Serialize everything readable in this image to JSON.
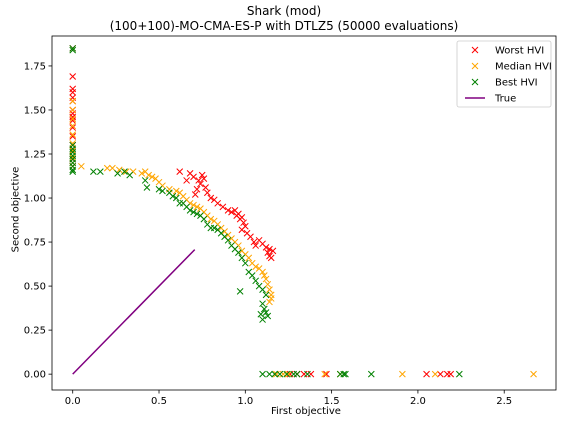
{
  "chart_data": {
    "type": "scatter",
    "title": "Shark (mod)",
    "subtitle": "(100+100)-MO-CMA-ES-P with DTLZ5 (50000 evaluations)",
    "xlabel": "First objective",
    "ylabel": "Second objective",
    "xlim": [
      -0.12,
      2.8
    ],
    "ylim": [
      -0.09,
      1.92
    ],
    "xticks": [
      "0.0",
      "0.5",
      "1.0",
      "1.5",
      "2.0",
      "2.5"
    ],
    "yticks": [
      "0.00",
      "0.25",
      "0.50",
      "0.75",
      "1.00",
      "1.25",
      "1.50",
      "1.75"
    ],
    "grid": false,
    "legend_position": "top-right",
    "series": [
      {
        "name": "Worst HVI",
        "marker": "x",
        "color": "#ff0000",
        "points": [
          [
            0,
            1.85
          ],
          [
            0,
            1.69
          ],
          [
            0,
            1.62
          ],
          [
            0,
            1.6
          ],
          [
            0,
            1.57
          ],
          [
            0,
            1.55
          ],
          [
            0,
            1.5
          ],
          [
            0,
            1.48
          ],
          [
            0,
            1.46
          ],
          [
            0,
            1.44
          ],
          [
            0,
            1.4
          ],
          [
            0,
            1.35
          ],
          [
            0,
            1.3
          ],
          [
            0,
            1.27
          ],
          [
            0,
            1.22
          ],
          [
            0,
            1.18
          ],
          [
            0.62,
            1.15
          ],
          [
            0.68,
            1.14
          ],
          [
            0.7,
            1.12
          ],
          [
            0.73,
            1.1
          ],
          [
            0.75,
            1.13
          ],
          [
            0.76,
            1.11
          ],
          [
            0.74,
            1.08
          ],
          [
            0.77,
            1.06
          ],
          [
            0.72,
            1.05
          ],
          [
            0.78,
            1.03
          ],
          [
            0.8,
            1.0
          ],
          [
            0.71,
            1.02
          ],
          [
            0.66,
            1.1
          ],
          [
            0.82,
            0.99
          ],
          [
            0.84,
            0.97
          ],
          [
            0.87,
            0.95
          ],
          [
            0.9,
            0.93
          ],
          [
            0.92,
            0.92
          ],
          [
            0.94,
            0.93
          ],
          [
            0.96,
            0.91
          ],
          [
            0.98,
            0.89
          ],
          [
            0.99,
            0.86
          ],
          [
            1.0,
            0.84
          ],
          [
            0.97,
            0.88
          ],
          [
            0.95,
            0.9
          ],
          [
            1.01,
            0.8
          ],
          [
            0.98,
            0.82
          ],
          [
            1.03,
            0.78
          ],
          [
            1.05,
            0.75
          ],
          [
            1.06,
            0.73
          ],
          [
            1.08,
            0.76
          ],
          [
            1.1,
            0.74
          ],
          [
            1.12,
            0.72
          ],
          [
            1.14,
            0.71
          ],
          [
            1.13,
            0.69
          ],
          [
            1.16,
            0.7
          ],
          [
            1.14,
            0.67
          ],
          [
            1.15,
            0.66
          ],
          [
            1.26,
            0
          ],
          [
            1.3,
            0
          ],
          [
            1.34,
            0
          ],
          [
            1.38,
            0
          ],
          [
            1.47,
            0
          ],
          [
            2.05,
            0
          ],
          [
            2.13,
            0
          ],
          [
            2.17,
            0
          ],
          [
            2.19,
            0
          ]
        ]
      },
      {
        "name": "Median HVI",
        "marker": "x",
        "color": "#ffa500",
        "points": [
          [
            0,
            1.55
          ],
          [
            0,
            1.5
          ],
          [
            0,
            1.45
          ],
          [
            0,
            1.41
          ],
          [
            0,
            1.36
          ],
          [
            0,
            1.31
          ],
          [
            0,
            1.27
          ],
          [
            0,
            1.23
          ],
          [
            0,
            1.2
          ],
          [
            0,
            1.18
          ],
          [
            0.05,
            1.18
          ],
          [
            0.2,
            1.17
          ],
          [
            0.23,
            1.17
          ],
          [
            0.27,
            1.16
          ],
          [
            0.31,
            1.15
          ],
          [
            0.35,
            1.15
          ],
          [
            0.4,
            1.14
          ],
          [
            0.42,
            1.15
          ],
          [
            0.44,
            1.13
          ],
          [
            0.46,
            1.12
          ],
          [
            0.48,
            1.11
          ],
          [
            0.5,
            1.09
          ],
          [
            0.52,
            1.07
          ],
          [
            0.56,
            1.05
          ],
          [
            0.6,
            1.04
          ],
          [
            0.62,
            1.03
          ],
          [
            0.64,
            1.01
          ],
          [
            0.66,
            0.99
          ],
          [
            0.68,
            0.97
          ],
          [
            0.7,
            0.96
          ],
          [
            0.72,
            0.95
          ],
          [
            0.74,
            0.94
          ],
          [
            0.76,
            0.92
          ],
          [
            0.78,
            0.9
          ],
          [
            0.8,
            0.88
          ],
          [
            0.82,
            0.87
          ],
          [
            0.84,
            0.85
          ],
          [
            0.86,
            0.83
          ],
          [
            0.88,
            0.81
          ],
          [
            0.9,
            0.79
          ],
          [
            0.92,
            0.77
          ],
          [
            0.94,
            0.75
          ],
          [
            0.96,
            0.73
          ],
          [
            0.98,
            0.7
          ],
          [
            1.0,
            0.68
          ],
          [
            1.02,
            0.66
          ],
          [
            1.04,
            0.63
          ],
          [
            1.06,
            0.61
          ],
          [
            1.08,
            0.6
          ],
          [
            1.1,
            0.58
          ],
          [
            1.11,
            0.56
          ],
          [
            1.12,
            0.54
          ],
          [
            1.13,
            0.51
          ],
          [
            1.14,
            0.48
          ],
          [
            1.15,
            0.45
          ],
          [
            1.15,
            0.43
          ],
          [
            1.14,
            0.41
          ],
          [
            1.18,
            0
          ],
          [
            1.22,
            0
          ],
          [
            1.25,
            0
          ],
          [
            1.46,
            0
          ],
          [
            1.55,
            0
          ],
          [
            1.91,
            0
          ],
          [
            2.1,
            0
          ],
          [
            2.67,
            0
          ]
        ]
      },
      {
        "name": "Best HVI",
        "marker": "x",
        "color": "#008000",
        "points": [
          [
            0,
            1.85
          ],
          [
            0,
            1.84
          ],
          [
            0,
            1.3
          ],
          [
            0,
            1.28
          ],
          [
            0,
            1.26
          ],
          [
            0,
            1.24
          ],
          [
            0,
            1.22
          ],
          [
            0,
            1.2
          ],
          [
            0,
            1.18
          ],
          [
            0,
            1.16
          ],
          [
            0,
            1.15
          ],
          [
            0.12,
            1.15
          ],
          [
            0.16,
            1.15
          ],
          [
            0.26,
            1.14
          ],
          [
            0.3,
            1.15
          ],
          [
            0.33,
            1.13
          ],
          [
            0.42,
            1.1
          ],
          [
            0.43,
            1.06
          ],
          [
            0.5,
            1.05
          ],
          [
            0.52,
            1.04
          ],
          [
            0.56,
            1.03
          ],
          [
            0.58,
            1.01
          ],
          [
            0.6,
            1.0
          ],
          [
            0.62,
            0.97
          ],
          [
            0.64,
            0.97
          ],
          [
            0.66,
            0.95
          ],
          [
            0.68,
            0.93
          ],
          [
            0.7,
            0.92
          ],
          [
            0.72,
            0.91
          ],
          [
            0.74,
            0.9
          ],
          [
            0.76,
            0.88
          ],
          [
            0.78,
            0.85
          ],
          [
            0.8,
            0.83
          ],
          [
            0.82,
            0.83
          ],
          [
            0.84,
            0.82
          ],
          [
            0.86,
            0.8
          ],
          [
            0.88,
            0.78
          ],
          [
            0.9,
            0.76
          ],
          [
            0.92,
            0.73
          ],
          [
            0.94,
            0.71
          ],
          [
            0.96,
            0.69
          ],
          [
            0.98,
            0.66
          ],
          [
            1.0,
            0.63
          ],
          [
            1.02,
            0.58
          ],
          [
            1.04,
            0.56
          ],
          [
            0.97,
            0.47
          ],
          [
            1.06,
            0.53
          ],
          [
            1.08,
            0.5
          ],
          [
            1.1,
            0.48
          ],
          [
            1.12,
            0.45
          ],
          [
            1.1,
            0.4
          ],
          [
            1.11,
            0.37
          ],
          [
            1.12,
            0.35
          ],
          [
            1.13,
            0.33
          ],
          [
            1.1,
            0.31
          ],
          [
            1.09,
            0.34
          ],
          [
            1.1,
            0
          ],
          [
            1.14,
            0
          ],
          [
            1.17,
            0
          ],
          [
            1.2,
            0
          ],
          [
            1.24,
            0
          ],
          [
            1.28,
            0
          ],
          [
            1.3,
            0
          ],
          [
            1.36,
            0
          ],
          [
            1.55,
            0
          ],
          [
            1.57,
            0
          ],
          [
            1.58,
            0
          ],
          [
            1.73,
            0
          ],
          [
            2.24,
            0
          ]
        ]
      },
      {
        "name": "True",
        "marker": "line",
        "color": "#800080",
        "points": [
          [
            0,
            0
          ],
          [
            0.707,
            0.707
          ]
        ]
      }
    ]
  }
}
